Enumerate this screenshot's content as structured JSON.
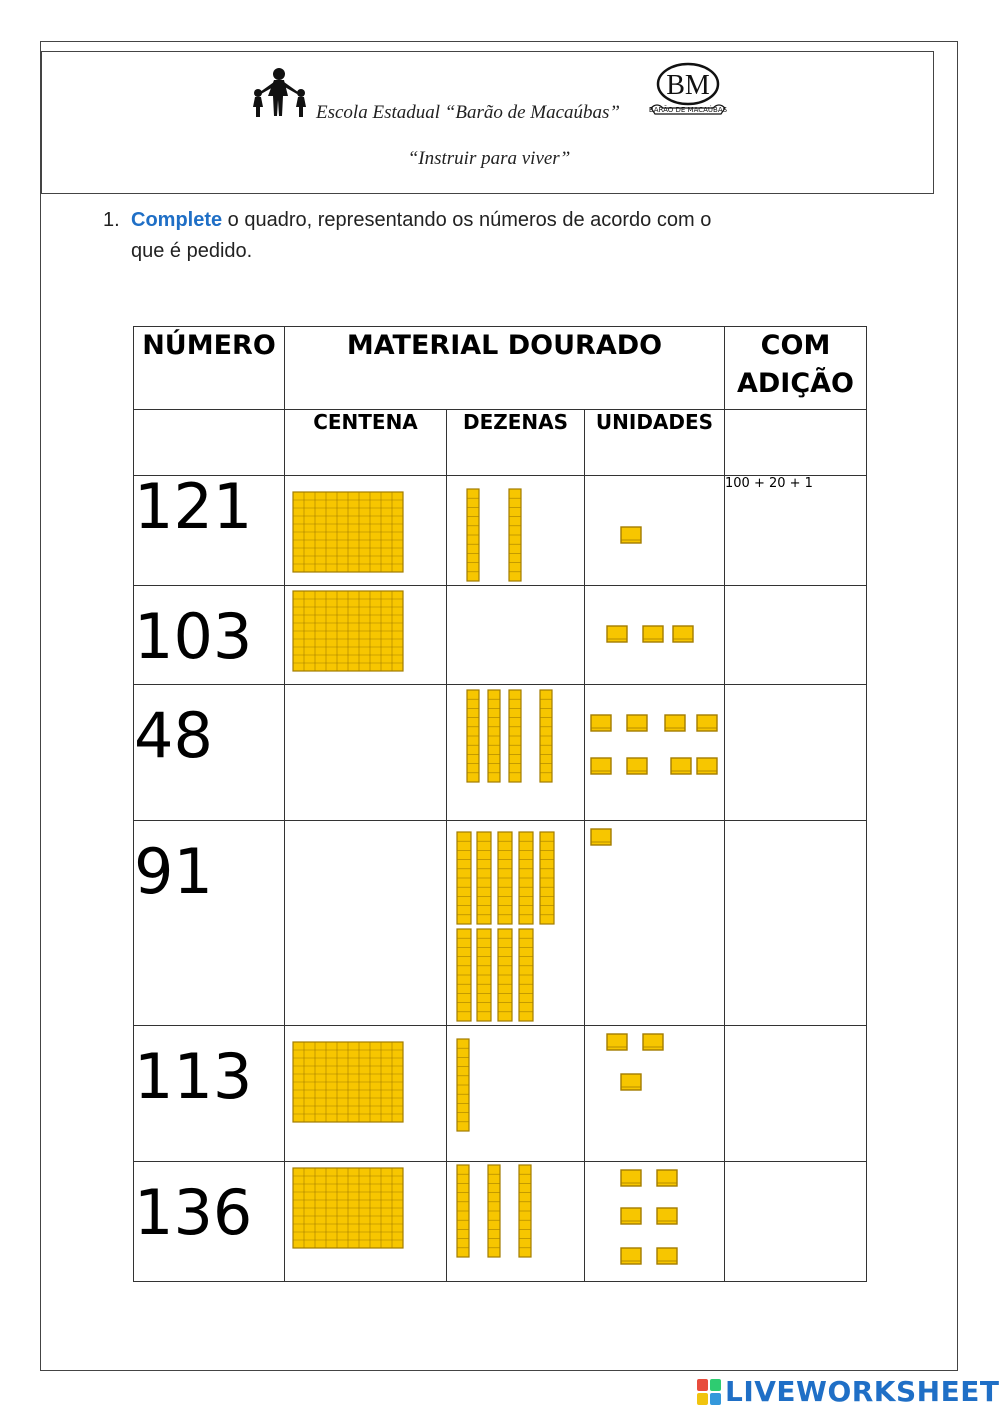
{
  "header": {
    "school_name": "Escola Estadual “Barão de Macaúbas”",
    "motto": "“Instruir para viver”",
    "crest_text": "BARÃO DE MACAÚBAS",
    "crest_initials": "BM"
  },
  "instruction": {
    "number": "1.",
    "highlight": "Complete",
    "rest_line1": " o quadro, representando os números de acordo com o",
    "line2": "que é pedido."
  },
  "table": {
    "headers": {
      "numero": "NÚMERO",
      "material": "MATERIAL DOURADO",
      "adicao": "COM ADIÇÃO",
      "centena": "CENTENA",
      "dezenas": "DEZENAS",
      "unidades": "UNIDADES"
    },
    "rows": [
      {
        "number": "121",
        "centenas": 1,
        "dezenas": 2,
        "unidades": 1,
        "addition": "100 + 20 + 1"
      },
      {
        "number": "103",
        "centenas": 1,
        "dezenas": 0,
        "unidades": 3,
        "addition": ""
      },
      {
        "number": "48",
        "centenas": 0,
        "dezenas": 4,
        "unidades": 8,
        "addition": ""
      },
      {
        "number": "91",
        "centenas": 0,
        "dezenas": 9,
        "unidades": 1,
        "addition": ""
      },
      {
        "number": "113",
        "centenas": 1,
        "dezenas": 1,
        "unidades": 3,
        "addition": ""
      },
      {
        "number": "136",
        "centenas": 1,
        "dezenas": 3,
        "unidades": 6,
        "addition": ""
      }
    ]
  },
  "branding": {
    "text": "LIVEWORKSHEETS",
    "accent": "#1f6fc6"
  },
  "colors": {
    "block_fill": "#f7c600",
    "block_line": "#a27c00"
  }
}
